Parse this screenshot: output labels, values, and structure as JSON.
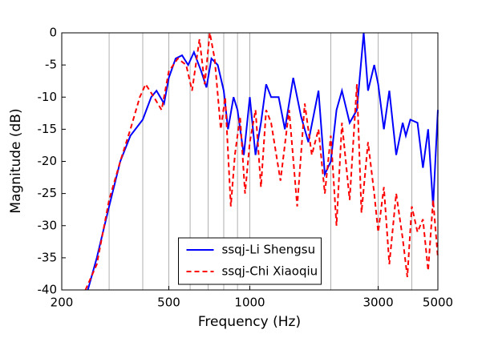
{
  "chart_data": {
    "type": "line",
    "x_label": "Frequency (Hz)",
    "y_label": "Magnitude (dB)",
    "xscale": "log",
    "xlim": [
      200,
      5000
    ],
    "xticks": [
      200,
      500,
      1000,
      3000,
      5000
    ],
    "xgrid": [
      300,
      400,
      500,
      600,
      700,
      800,
      900,
      1000,
      2000,
      3000,
      4000
    ],
    "ylim": [
      -40,
      0
    ],
    "yticks": [
      -40,
      -35,
      -30,
      -25,
      -20,
      -15,
      -10,
      -5,
      0
    ],
    "grid": true,
    "legend": "lower center",
    "series": [
      {
        "name": "ssqj-Li Shengsu",
        "color": "#0000ff",
        "dash": "solid",
        "x": [
          250,
          270,
          300,
          330,
          360,
          400,
          430,
          450,
          480,
          500,
          530,
          560,
          590,
          620,
          660,
          690,
          720,
          760,
          800,
          830,
          870,
          900,
          950,
          1000,
          1050,
          1100,
          1150,
          1200,
          1280,
          1350,
          1450,
          1550,
          1650,
          1800,
          1900,
          2000,
          2100,
          2200,
          2350,
          2500,
          2650,
          2750,
          2900,
          3000,
          3150,
          3300,
          3500,
          3700,
          3800,
          3950,
          4200,
          4400,
          4600,
          4800,
          5000
        ],
        "values": [
          -40,
          -35,
          -27,
          -20,
          -16,
          -13.5,
          -10,
          -9,
          -11,
          -7,
          -4,
          -3.5,
          -5,
          -3,
          -6,
          -8.5,
          -4,
          -5,
          -9,
          -15,
          -10,
          -12,
          -19,
          -10,
          -19,
          -14,
          -8,
          -10,
          -10,
          -15,
          -7,
          -13,
          -17,
          -9,
          -22,
          -20,
          -12,
          -9,
          -14,
          -12,
          0,
          -9,
          -5,
          -8,
          -15,
          -9,
          -19,
          -14,
          -16,
          -13.5,
          -14,
          -21,
          -15,
          -27,
          -12
        ]
      },
      {
        "name": "ssqj-Chi Xiaoqiu",
        "color": "#ff0000",
        "dash": "dashed",
        "x": [
          245,
          270,
          300,
          330,
          360,
          390,
          410,
          440,
          470,
          500,
          540,
          580,
          610,
          650,
          680,
          710,
          740,
          780,
          810,
          850,
          880,
          920,
          960,
          1000,
          1050,
          1100,
          1150,
          1200,
          1300,
          1400,
          1500,
          1600,
          1700,
          1800,
          1900,
          2000,
          2100,
          2200,
          2350,
          2500,
          2600,
          2750,
          2900,
          3000,
          3150,
          3300,
          3500,
          3700,
          3850,
          4000,
          4200,
          4400,
          4600,
          4800,
          5000
        ],
        "values": [
          -40,
          -36,
          -26,
          -20,
          -15,
          -10,
          -8,
          -10,
          -12,
          -6,
          -4,
          -5,
          -9,
          -1,
          -8,
          0,
          -4,
          -15,
          -10,
          -27,
          -19,
          -13,
          -25,
          -17,
          -12,
          -24,
          -12,
          -14,
          -23,
          -12,
          -27,
          -11,
          -19,
          -15,
          -25,
          -16,
          -30,
          -14,
          -26,
          -8,
          -28,
          -17,
          -25,
          -31,
          -24,
          -36,
          -25,
          -32,
          -38,
          -27,
          -31,
          -29,
          -37,
          -26,
          -35
        ]
      }
    ]
  }
}
